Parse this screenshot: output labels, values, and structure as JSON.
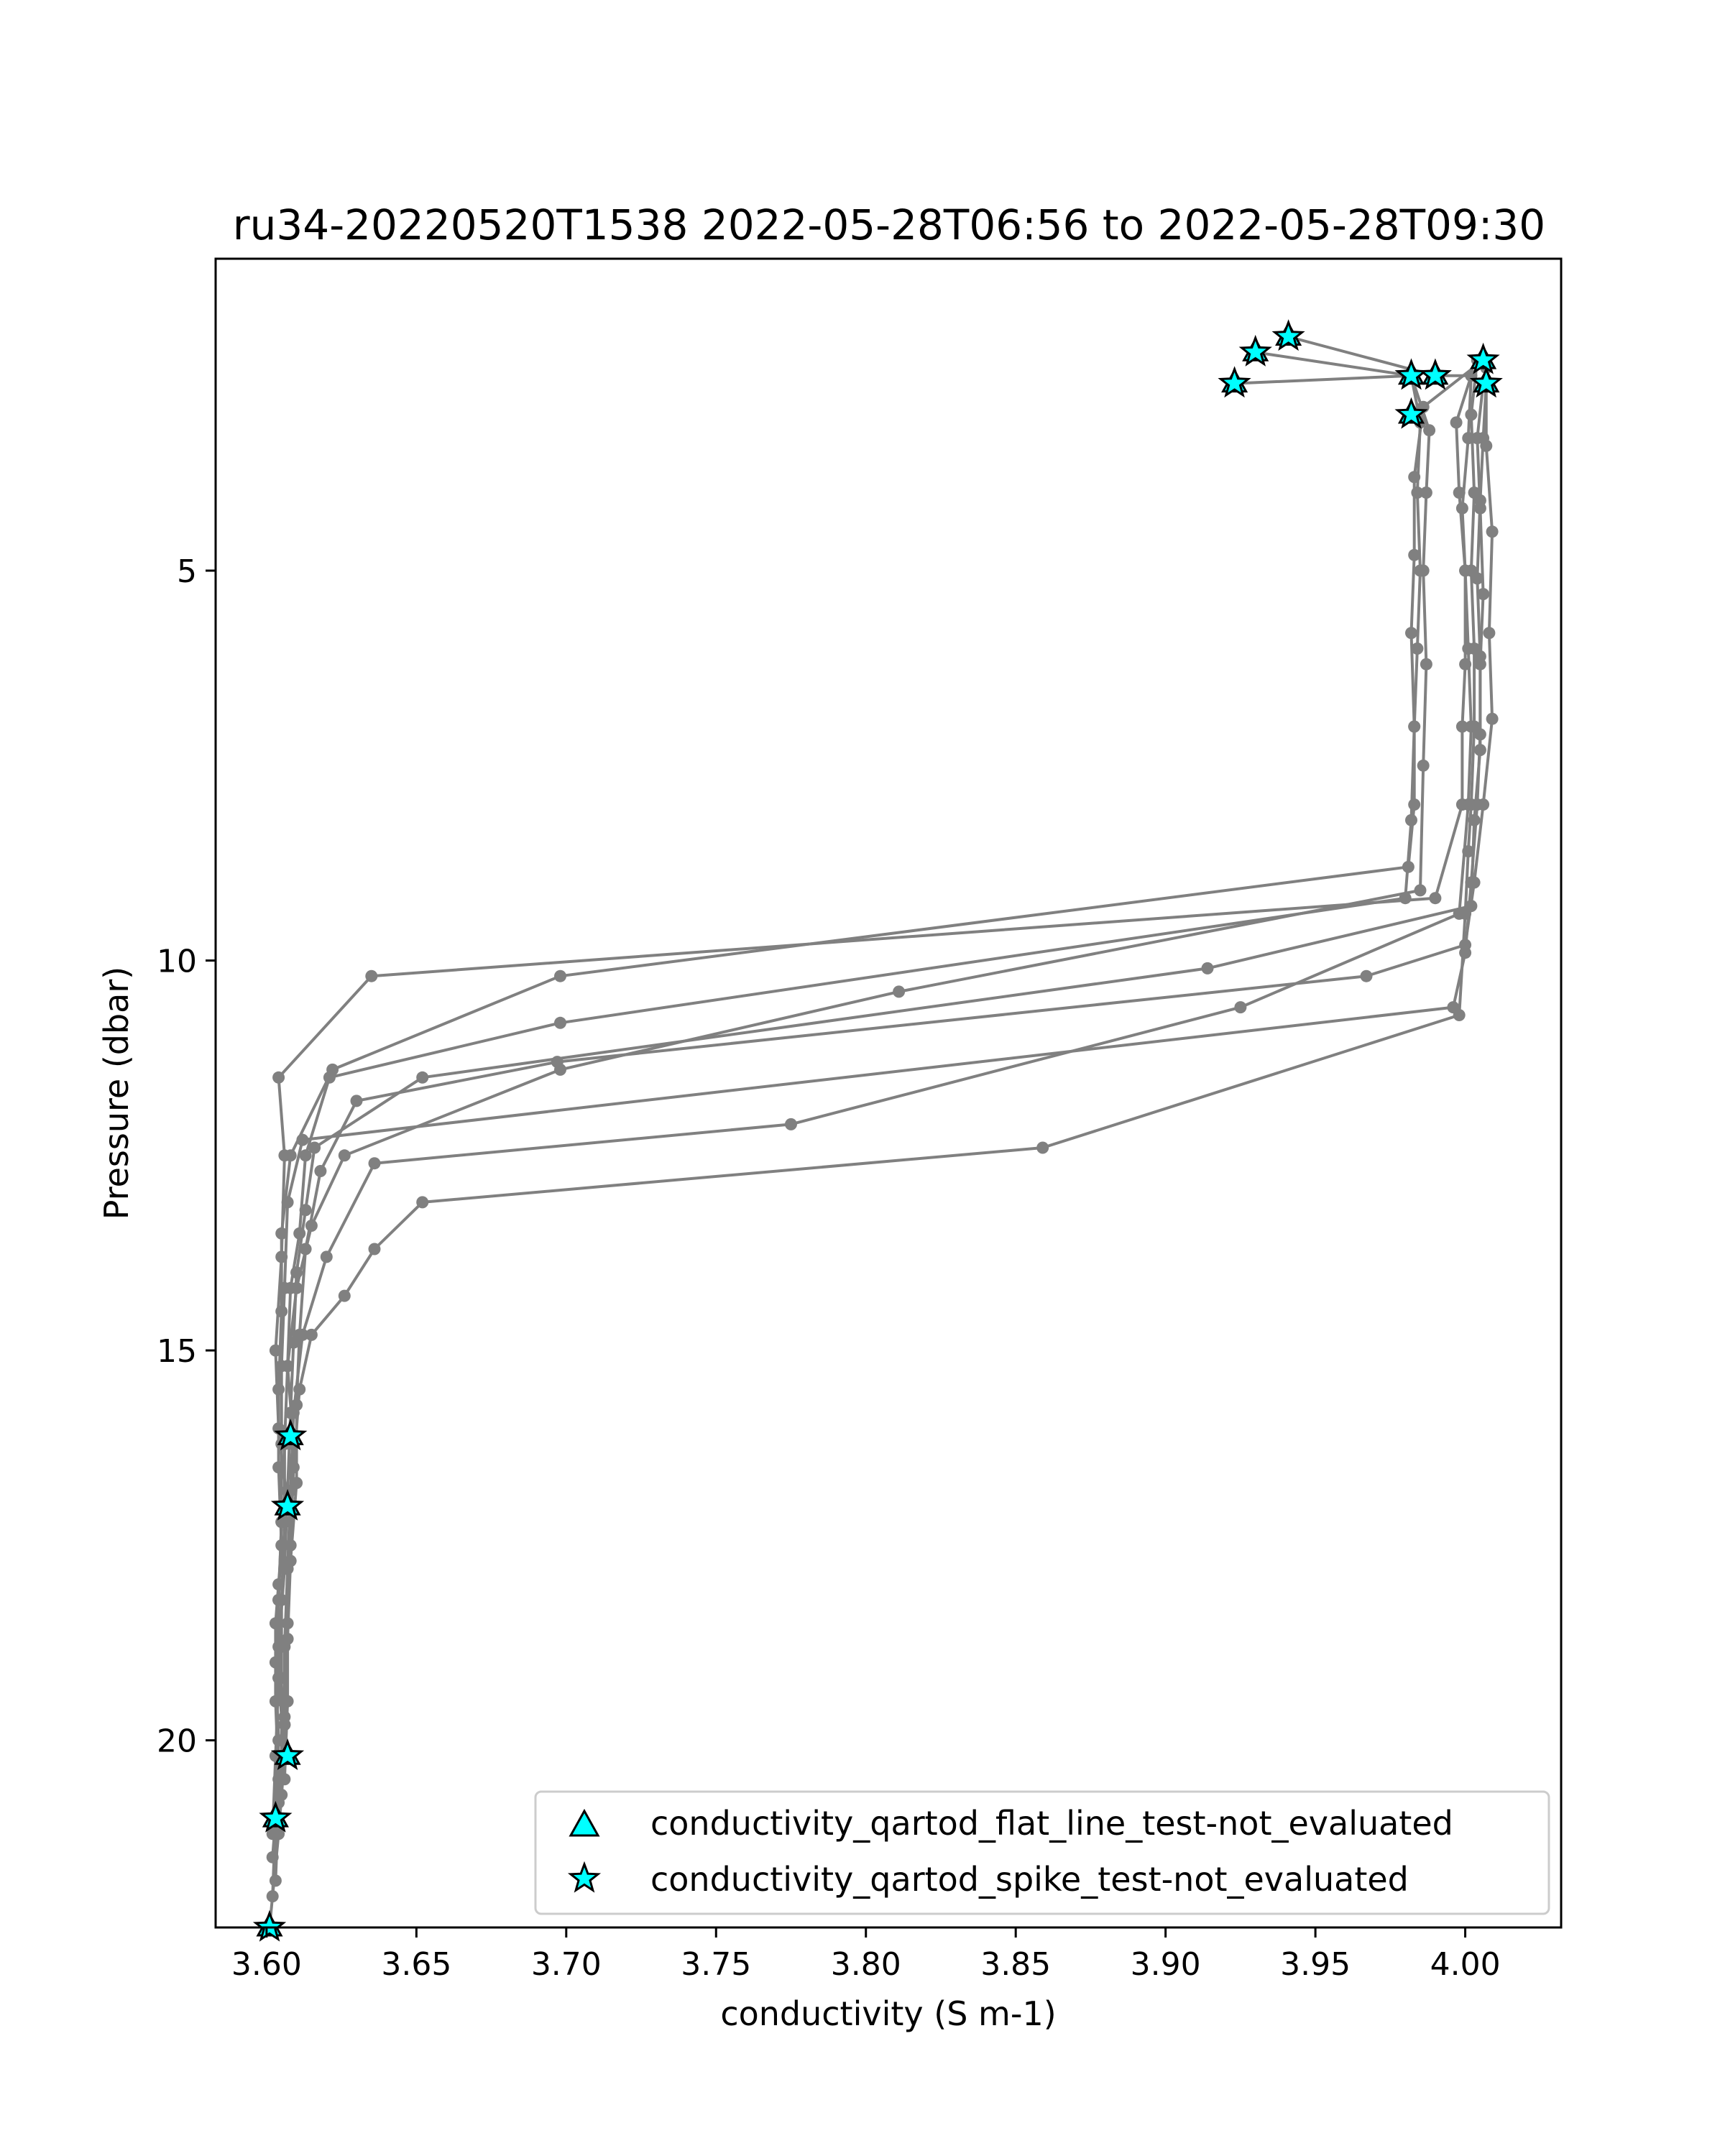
{
  "chart_data": {
    "type": "line",
    "title": "ru34-20220520T1538 2022-05-28T06:56 to 2022-05-28T09:30",
    "xlabel": "conductivity (S m-1)",
    "ylabel": "Pressure (dbar)",
    "xlim": [
      3.583,
      4.032
    ],
    "ylim": [
      22.4,
      1.0
    ],
    "y_inverted": true,
    "grid": false,
    "x_ticks": [
      {
        "value": 3.6,
        "label": "3.60"
      },
      {
        "value": 3.65,
        "label": "3.65"
      },
      {
        "value": 3.7,
        "label": "3.70"
      },
      {
        "value": 3.75,
        "label": "3.75"
      },
      {
        "value": 3.8,
        "label": "3.80"
      },
      {
        "value": 3.85,
        "label": "3.85"
      },
      {
        "value": 3.9,
        "label": "3.90"
      },
      {
        "value": 3.95,
        "label": "3.95"
      },
      {
        "value": 4.0,
        "label": "4.00"
      }
    ],
    "y_ticks": [
      {
        "value": 5,
        "label": "5"
      },
      {
        "value": 10,
        "label": "10"
      },
      {
        "value": 15,
        "label": "15"
      },
      {
        "value": 20,
        "label": "20"
      }
    ],
    "line_color": "#808080",
    "marker_color": "#00FFFF",
    "legend": {
      "position": "lower right",
      "entries": [
        {
          "marker": "triangle",
          "label": "conductivity_qartod_flat_line_test-not_evaluated"
        },
        {
          "marker": "star",
          "label": "conductivity_qartod_spike_test-not_evaluated"
        }
      ]
    },
    "profiles": [
      [
        [
          3.941,
          2.0
        ],
        [
          3.99,
          2.5
        ],
        [
          4.002,
          2.5
        ],
        [
          3.997,
          3.1
        ],
        [
          3.998,
          4.0
        ],
        [
          4.0,
          5.0
        ],
        [
          4.0,
          6.2
        ],
        [
          3.999,
          7.0
        ],
        [
          3.999,
          8.0
        ],
        [
          3.99,
          9.2
        ],
        [
          3.635,
          10.2
        ],
        [
          3.604,
          11.5
        ],
        [
          3.606,
          12.5
        ],
        [
          3.605,
          13.8
        ],
        [
          3.603,
          15.0
        ],
        [
          3.604,
          16.0
        ],
        [
          3.607,
          17.0
        ],
        [
          3.604,
          18.0
        ],
        [
          3.603,
          19.0
        ],
        [
          3.604,
          20.0
        ],
        [
          3.603,
          21.0
        ],
        [
          3.602,
          22.0
        ]
      ],
      [
        [
          3.93,
          2.2
        ],
        [
          3.982,
          2.5
        ],
        [
          3.985,
          3.1
        ],
        [
          3.984,
          4.0
        ],
        [
          3.985,
          5.0
        ],
        [
          3.984,
          6.0
        ],
        [
          3.983,
          7.0
        ],
        [
          3.983,
          8.0
        ],
        [
          3.981,
          8.8
        ],
        [
          3.698,
          10.2
        ],
        [
          3.622,
          11.4
        ],
        [
          3.608,
          12.5
        ],
        [
          3.605,
          13.5
        ],
        [
          3.605,
          14.5
        ],
        [
          3.604,
          15.5
        ],
        [
          3.604,
          16.5
        ],
        [
          3.605,
          17.5
        ],
        [
          3.603,
          18.5
        ],
        [
          3.603,
          19.5
        ],
        [
          3.604,
          20.5
        ],
        [
          3.602,
          21.5
        ]
      ],
      [
        [
          3.923,
          2.6
        ],
        [
          3.982,
          2.5
        ],
        [
          3.988,
          3.2
        ],
        [
          3.987,
          4.0
        ],
        [
          3.986,
          5.0
        ],
        [
          3.987,
          6.2
        ],
        [
          3.986,
          7.5
        ],
        [
          3.985,
          9.1
        ],
        [
          3.811,
          10.4
        ],
        [
          3.698,
          11.4
        ],
        [
          3.626,
          12.5
        ],
        [
          3.615,
          13.4
        ],
        [
          3.61,
          14.2
        ],
        [
          3.607,
          15.2
        ],
        [
          3.609,
          16.2
        ],
        [
          3.605,
          17.2
        ],
        [
          3.604,
          18.2
        ],
        [
          3.604,
          19.2
        ],
        [
          3.606,
          20.2
        ],
        [
          3.604,
          21.2
        ],
        [
          3.601,
          22.4
        ]
      ],
      [
        [
          4.006,
          2.3
        ],
        [
          3.986,
          2.9
        ],
        [
          3.983,
          3.8
        ],
        [
          3.983,
          4.8
        ],
        [
          3.982,
          5.8
        ],
        [
          3.983,
          7.0
        ],
        [
          3.982,
          8.2
        ],
        [
          3.98,
          9.2
        ],
        [
          3.698,
          10.8
        ],
        [
          3.621,
          11.5
        ],
        [
          3.613,
          12.5
        ],
        [
          3.611,
          13.5
        ],
        [
          3.608,
          14.2
        ],
        [
          3.607,
          15.2
        ],
        [
          3.606,
          16.2
        ],
        [
          3.606,
          17.2
        ],
        [
          3.605,
          18.2
        ],
        [
          3.605,
          19.2
        ],
        [
          3.605,
          20.2
        ],
        [
          3.603,
          21.1
        ]
      ],
      [
        [
          4.006,
          2.6
        ],
        [
          4.004,
          3.3
        ],
        [
          4.005,
          4.2
        ],
        [
          4.006,
          5.3
        ],
        [
          4.005,
          6.2
        ],
        [
          4.005,
          7.3
        ],
        [
          4.003,
          8.2
        ],
        [
          4.002,
          9.3
        ],
        [
          3.914,
          10.1
        ],
        [
          3.652,
          11.5
        ],
        [
          3.616,
          12.4
        ],
        [
          3.613,
          13.2
        ],
        [
          3.61,
          14.0
        ],
        [
          3.609,
          14.9
        ],
        [
          3.608,
          15.8
        ],
        [
          3.607,
          16.8
        ],
        [
          3.606,
          17.8
        ],
        [
          3.604,
          18.8
        ],
        [
          3.606,
          19.8
        ],
        [
          3.606,
          20.2
        ]
      ],
      [
        [
          4.007,
          2.4
        ],
        [
          4.007,
          3.4
        ],
        [
          4.009,
          4.5
        ],
        [
          4.008,
          5.8
        ],
        [
          4.009,
          6.9
        ],
        [
          4.006,
          8.0
        ],
        [
          4.003,
          9.0
        ],
        [
          4.0,
          9.8
        ],
        [
          3.967,
          10.2
        ],
        [
          3.697,
          11.3
        ],
        [
          3.63,
          11.8
        ],
        [
          3.618,
          12.7
        ],
        [
          3.613,
          13.7
        ],
        [
          3.611,
          14.8
        ],
        [
          3.61,
          15.7
        ],
        [
          3.61,
          16.7
        ],
        [
          3.608,
          17.7
        ],
        [
          3.607,
          18.7
        ],
        [
          3.606,
          19.7
        ],
        [
          3.605,
          20.7
        ]
      ],
      [
        [
          4.002,
          2.5
        ],
        [
          4.001,
          3.3
        ],
        [
          3.999,
          4.2
        ],
        [
          4.0,
          5.0
        ],
        [
          4.001,
          6.0
        ],
        [
          4.002,
          7.0
        ],
        [
          4.001,
          8.0
        ],
        [
          3.998,
          9.4
        ],
        [
          3.925,
          10.6
        ],
        [
          3.775,
          12.1
        ],
        [
          3.636,
          12.6
        ],
        [
          3.62,
          13.8
        ],
        [
          3.612,
          14.8
        ],
        [
          3.609,
          15.8
        ],
        [
          3.608,
          16.8
        ],
        [
          3.607,
          17.8
        ],
        [
          3.606,
          18.8
        ],
        [
          3.606,
          19.8
        ],
        [
          3.604,
          20.8
        ],
        [
          3.603,
          21.8
        ]
      ],
      [
        [
          4.004,
          2.3
        ],
        [
          4.002,
          3.0
        ],
        [
          4.003,
          4.0
        ],
        [
          4.002,
          5.0
        ],
        [
          4.003,
          6.0
        ],
        [
          4.003,
          7.0
        ],
        [
          4.002,
          8.0
        ],
        [
          4.001,
          8.6
        ],
        [
          4.0,
          9.4
        ],
        [
          3.998,
          10.7
        ],
        [
          3.859,
          12.4
        ],
        [
          3.652,
          13.1
        ],
        [
          3.636,
          13.7
        ],
        [
          3.626,
          14.3
        ],
        [
          3.615,
          14.8
        ],
        [
          3.611,
          15.5
        ],
        [
          3.609,
          16.5
        ],
        [
          3.608,
          17.5
        ],
        [
          3.607,
          18.5
        ],
        [
          3.607,
          19.5
        ],
        [
          3.606,
          20.5
        ]
      ],
      [
        [
          4.007,
          2.6
        ],
        [
          4.006,
          3.3
        ],
        [
          4.005,
          4.1
        ],
        [
          4.004,
          5.1
        ],
        [
          4.005,
          6.1
        ],
        [
          4.005,
          7.1
        ],
        [
          4.004,
          8.0
        ],
        [
          4.002,
          9.0
        ],
        [
          4.0,
          9.9
        ],
        [
          3.996,
          10.6
        ],
        [
          3.612,
          12.3
        ],
        [
          3.607,
          13.1
        ],
        [
          3.606,
          14.2
        ],
        [
          3.605,
          15.2
        ],
        [
          3.605,
          16.2
        ],
        [
          3.605,
          17.2
        ],
        [
          3.604,
          18.2
        ],
        [
          3.604,
          19.2
        ],
        [
          3.603,
          20.2
        ],
        [
          3.602,
          21.2
        ]
      ]
    ],
    "spike_test_not_evaluated_points": [
      [
        3.941,
        2.0
      ],
      [
        3.93,
        2.2
      ],
      [
        3.923,
        2.6
      ],
      [
        3.982,
        2.5
      ],
      [
        3.99,
        2.5
      ],
      [
        4.006,
        2.3
      ],
      [
        4.007,
        2.6
      ],
      [
        3.982,
        3.0
      ],
      [
        3.608,
        16.1
      ],
      [
        3.607,
        17.0
      ],
      [
        3.607,
        20.2
      ],
      [
        3.603,
        21.0
      ],
      [
        3.601,
        22.4
      ]
    ]
  }
}
